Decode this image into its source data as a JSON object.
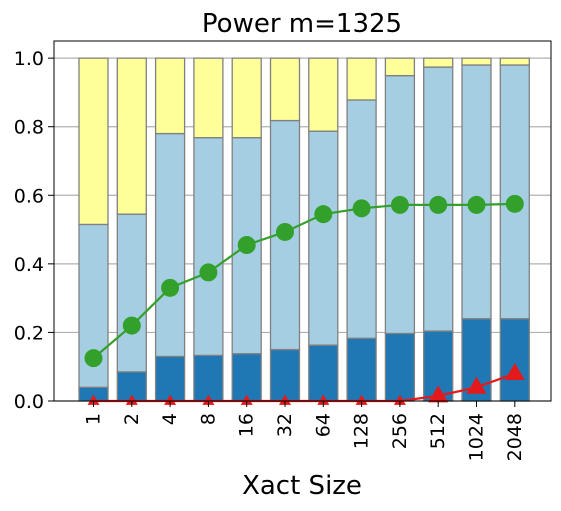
{
  "chart_data": {
    "type": "bar",
    "stacked": true,
    "title": "Power m=1325",
    "xlabel": "Xact Size",
    "ylabel": "",
    "ylim": [
      0,
      1.05
    ],
    "yticks": [
      "0.0",
      "0.2",
      "0.4",
      "0.6",
      "0.8",
      "1.0"
    ],
    "grid": "y",
    "legend": "none",
    "categories": [
      "1",
      "2",
      "4",
      "8",
      "16",
      "32",
      "64",
      "128",
      "256",
      "512",
      "1024",
      "2048"
    ],
    "stack_series": [
      {
        "color": "#1f77b4",
        "values": [
          0.04,
          0.085,
          0.13,
          0.133,
          0.138,
          0.15,
          0.163,
          0.183,
          0.197,
          0.204,
          0.24,
          0.24
        ]
      },
      {
        "color": "#a6cee3",
        "values": [
          0.475,
          0.46,
          0.65,
          0.635,
          0.63,
          0.668,
          0.624,
          0.695,
          0.752,
          0.77,
          0.74,
          0.74
        ]
      },
      {
        "color": "#ffff99",
        "values": [
          0.485,
          0.455,
          0.22,
          0.232,
          0.232,
          0.182,
          0.213,
          0.122,
          0.051,
          0.026,
          0.02,
          0.02
        ]
      }
    ],
    "line_series": [
      {
        "color": "#33a02c",
        "marker": "circle",
        "values": [
          0.125,
          0.22,
          0.33,
          0.375,
          0.455,
          0.493,
          0.545,
          0.562,
          0.572,
          0.572,
          0.572,
          0.575
        ]
      },
      {
        "color": "#e31a1c",
        "marker": "triangle",
        "values": [
          0.0,
          0.0,
          0.0,
          0.0,
          0.0,
          0.0,
          0.0,
          0.0,
          0.0,
          0.015,
          0.04,
          0.08
        ]
      }
    ]
  }
}
